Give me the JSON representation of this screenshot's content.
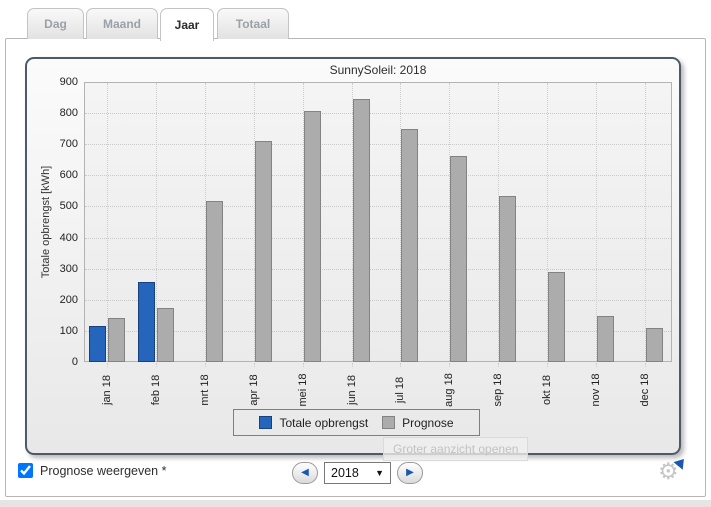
{
  "tabs": [
    {
      "label": "Dag",
      "active": false
    },
    {
      "label": "Maand",
      "active": false
    },
    {
      "label": "Jaar",
      "active": true
    },
    {
      "label": "Totaal",
      "active": false
    }
  ],
  "chart_data": {
    "type": "bar",
    "title": "SunnySoleil: 2018",
    "xlabel": "",
    "ylabel": "Totale opbrengst [kWh]",
    "ylim": [
      0,
      900
    ],
    "ytick_step": 100,
    "grid": true,
    "legend_position": "bottom",
    "categories": [
      "jan 18",
      "feb 18",
      "mrt 18",
      "apr 18",
      "mei 18",
      "jun 18",
      "jul 18",
      "aug 18",
      "sep 18",
      "okt 18",
      "nov 18",
      "dec 18"
    ],
    "series": [
      {
        "name": "Totale opbrengst",
        "color": "#2565bb",
        "border_color": "#17427f",
        "values": [
          115,
          257,
          null,
          null,
          null,
          null,
          null,
          null,
          null,
          null,
          null,
          null
        ]
      },
      {
        "name": "Prognose",
        "color": "#acacac",
        "border_color": "#838383",
        "values": [
          143,
          172,
          517,
          710,
          808,
          845,
          750,
          663,
          533,
          289,
          147,
          108
        ]
      }
    ]
  },
  "tooltip": {
    "label": "Groter aanzicht openen"
  },
  "controls": {
    "prognose_checkbox_label": "Prognose weergeven *",
    "prognose_checked": true,
    "year_value": "2018",
    "prev_icon": "◀",
    "next_icon": "▶",
    "dropdown_icon": "▼",
    "gear_icon": "⚙",
    "accent_color": "#1a57b0"
  }
}
